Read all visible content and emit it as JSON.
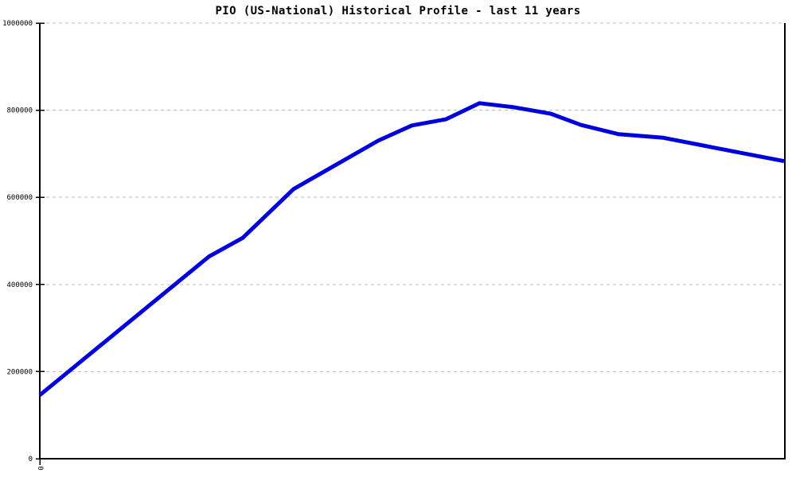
{
  "chart": {
    "title": "PIO (US-National) Historical Profile - last 11 years"
  },
  "colors": {
    "line": "#0000dd",
    "grid": "#bdbdbd",
    "axis": "#000000",
    "background": "#ffffff"
  },
  "chart_data": {
    "type": "line",
    "title": "PIO (US-National) Historical Profile - last 11 years",
    "legend": "none",
    "grid": "horizontal-dashed",
    "x_axis": {
      "label": "",
      "tick_labels": [
        "0"
      ],
      "tick_label_rotation_deg": 90,
      "range_years": [
        0,
        11
      ]
    },
    "y_axis": {
      "label": "",
      "tick_labels": [
        "0",
        "200000",
        "400000",
        "600000",
        "800000",
        "1000000"
      ],
      "range": [
        0,
        1000000
      ]
    },
    "series": [
      {
        "name": "PIO (US-National) historical profile",
        "color": "#0000dd",
        "points": [
          {
            "x": 0.0,
            "y": 146000
          },
          {
            "x": 2.5,
            "y": 464000
          },
          {
            "x": 3.0,
            "y": 507000
          },
          {
            "x": 3.75,
            "y": 619000
          },
          {
            "x": 5.0,
            "y": 730000
          },
          {
            "x": 5.5,
            "y": 765000
          },
          {
            "x": 6.0,
            "y": 779000
          },
          {
            "x": 6.5,
            "y": 816000
          },
          {
            "x": 7.0,
            "y": 807000
          },
          {
            "x": 7.55,
            "y": 792000
          },
          {
            "x": 8.0,
            "y": 766000
          },
          {
            "x": 8.55,
            "y": 745000
          },
          {
            "x": 9.2,
            "y": 737000
          },
          {
            "x": 10.0,
            "y": 713000
          },
          {
            "x": 11.0,
            "y": 683000
          }
        ]
      }
    ]
  }
}
